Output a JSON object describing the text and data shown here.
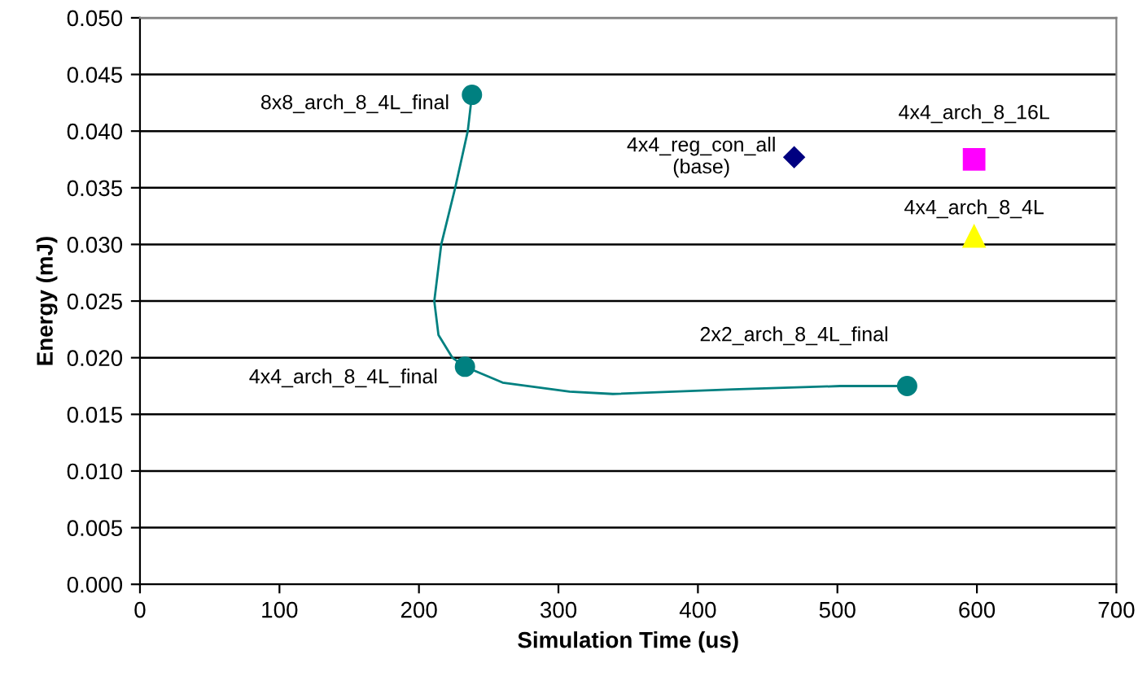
{
  "chart_data": {
    "type": "scatter",
    "xlabel": "Simulation Time (us)",
    "ylabel": "Energy (mJ)",
    "xlim": [
      0,
      700
    ],
    "xticks": [
      0,
      100,
      200,
      300,
      400,
      500,
      600,
      700
    ],
    "ylim": [
      0,
      0.05
    ],
    "yticks": [
      {
        "value": 0,
        "label": "0.000"
      },
      {
        "value": 0.005,
        "label": "0.005"
      },
      {
        "value": 0.01,
        "label": "0.010"
      },
      {
        "value": 0.015,
        "label": "0.015"
      },
      {
        "value": 0.02,
        "label": "0.020"
      },
      {
        "value": 0.025,
        "label": "0.025"
      },
      {
        "value": 0.03,
        "label": "0.030"
      },
      {
        "value": 0.035,
        "label": "0.035"
      },
      {
        "value": 0.04,
        "label": "0.040"
      },
      {
        "value": 0.045,
        "label": "0.045"
      },
      {
        "value": 0.05,
        "label": "0.050"
      }
    ],
    "grid": "y",
    "legend": false,
    "series": [
      {
        "type": "line",
        "color": "#008080",
        "marker": "none",
        "line_style": "solid",
        "x": [
          238,
          235,
          226,
          216,
          211,
          214,
          224,
          233,
          260,
          308,
          339,
          425,
          502,
          550
        ],
        "values": [
          0.0432,
          0.04,
          0.035,
          0.03,
          0.025,
          0.022,
          0.02,
          0.0192,
          0.0178,
          0.017,
          0.0168,
          0.0172,
          0.0175,
          0.0175
        ]
      },
      {
        "color": "#008080",
        "marker": "circle",
        "x": [
          238,
          233,
          550
        ],
        "values": [
          0.0432,
          0.0192,
          0.0175
        ]
      },
      {
        "name": "4x4_reg_con_all\n(base)",
        "color": "#000080",
        "marker": "diamond",
        "x": [
          469
        ],
        "values": [
          0.0377
        ]
      },
      {
        "name": "4x4_arch_8_16L",
        "color": "#ff00ff",
        "marker": "square",
        "x": [
          598
        ],
        "values": [
          0.0375
        ]
      },
      {
        "name": "4x4_arch_8_4L",
        "color": "#ffff00",
        "marker": "triangle",
        "x": [
          598
        ],
        "values": [
          0.0307
        ]
      }
    ],
    "annotations": [
      {
        "text": "8x8_arch_8_4L_final",
        "x": 238,
        "y": 0.0432
      },
      {
        "text": "4x4_arch_8_4L_final",
        "x": 233,
        "y": 0.0192
      },
      {
        "text": "2x2_arch_8_4L_final",
        "x": 550,
        "y": 0.0175
      }
    ]
  }
}
